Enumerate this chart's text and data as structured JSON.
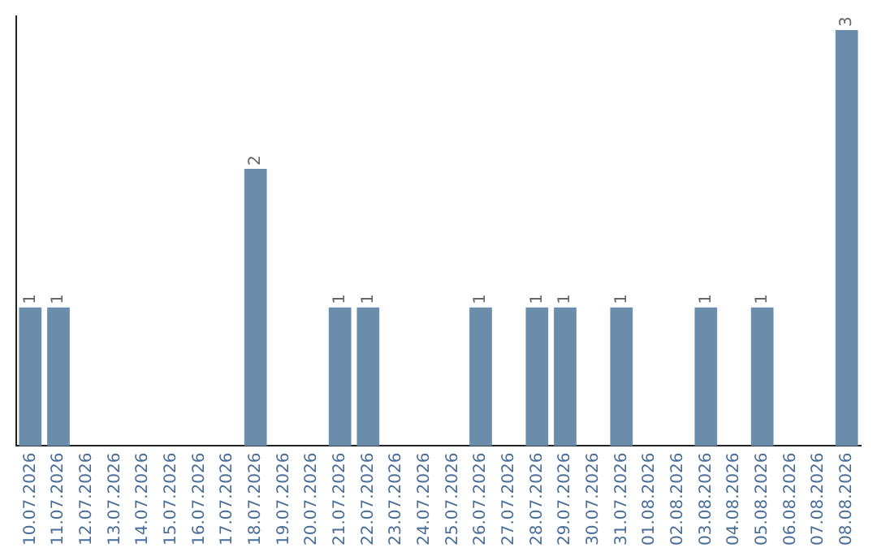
{
  "chart_data": {
    "type": "bar",
    "categories": [
      "10.07.2026",
      "11.07.2026",
      "12.07.2026",
      "13.07.2026",
      "14.07.2026",
      "15.07.2026",
      "16.07.2026",
      "17.07.2026",
      "18.07.2026",
      "19.07.2026",
      "20.07.2026",
      "21.07.2026",
      "22.07.2026",
      "23.07.2026",
      "24.07.2026",
      "25.07.2026",
      "26.07.2026",
      "27.07.2026",
      "28.07.2026",
      "29.07.2026",
      "30.07.2026",
      "31.07.2026",
      "01.08.2026",
      "02.08.2026",
      "03.08.2026",
      "04.08.2026",
      "05.08.2026",
      "06.08.2026",
      "07.08.2026",
      "08.08.2026"
    ],
    "values": [
      1,
      1,
      0,
      0,
      0,
      0,
      0,
      0,
      2,
      0,
      0,
      1,
      1,
      0,
      0,
      0,
      1,
      0,
      1,
      1,
      0,
      1,
      0,
      0,
      1,
      0,
      1,
      0,
      0,
      3
    ],
    "value_labels": [
      "1",
      "1",
      null,
      null,
      null,
      null,
      null,
      null,
      "2",
      null,
      null,
      "1",
      "1",
      null,
      null,
      null,
      "1",
      null,
      "1",
      "1",
      null,
      "1",
      null,
      null,
      "1",
      null,
      "1",
      null,
      null,
      "3"
    ],
    "color": "#6b8cab",
    "ylim": [
      0,
      3.1
    ],
    "tick_labels": "x",
    "grid": false,
    "legend": false
  }
}
